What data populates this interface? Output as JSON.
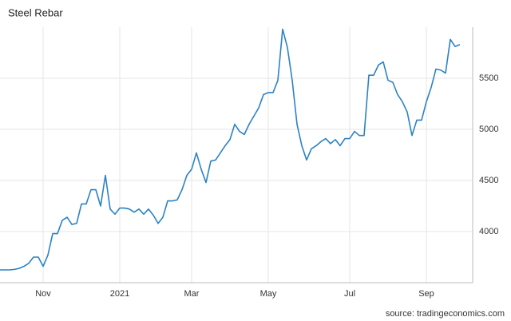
{
  "chart_data": {
    "type": "line",
    "title": "Steel Rebar",
    "source": "source: tradingeconomics.com",
    "categories": [
      null,
      null,
      null,
      null,
      null,
      null,
      null,
      null,
      null,
      "Nov",
      null,
      null,
      null,
      null,
      null,
      null,
      null,
      null,
      null,
      null,
      null,
      null,
      null,
      null,
      null,
      "2021",
      null,
      null,
      null,
      null,
      null,
      null,
      null,
      null,
      null,
      null,
      null,
      null,
      null,
      null,
      "Mar",
      null,
      null,
      null,
      null,
      null,
      null,
      null,
      null,
      null,
      null,
      null,
      null,
      null,
      null,
      null,
      "May",
      null,
      null,
      null,
      null,
      null,
      null,
      null,
      null,
      null,
      null,
      null,
      null,
      null,
      null,
      null,
      null,
      "Jul",
      null,
      null,
      null,
      null,
      null,
      null,
      null,
      null,
      null,
      null,
      null,
      null,
      null,
      null,
      null,
      "Sep",
      null,
      null,
      null,
      null,
      null,
      null,
      null
    ],
    "series": [
      {
        "name": "Steel Rebar",
        "color": "#2b82c4",
        "values": [
          3625,
          3625,
          3625,
          3630,
          3640,
          3660,
          3690,
          3750,
          3750,
          3660,
          3770,
          3980,
          3980,
          4110,
          4140,
          4070,
          4080,
          4270,
          4270,
          4410,
          4410,
          4250,
          4550,
          4220,
          4170,
          4230,
          4230,
          4220,
          4190,
          4220,
          4170,
          4220,
          4160,
          4080,
          4140,
          4300,
          4300,
          4310,
          4410,
          4550,
          4610,
          4770,
          4610,
          4480,
          4690,
          4700,
          4770,
          4840,
          4900,
          5050,
          4980,
          4950,
          5050,
          5130,
          5210,
          5340,
          5360,
          5360,
          5480,
          5980,
          5800,
          5480,
          5050,
          4840,
          4700,
          4810,
          4840,
          4880,
          4910,
          4860,
          4900,
          4840,
          4910,
          4910,
          4980,
          4940,
          4940,
          5530,
          5530,
          5630,
          5660,
          5480,
          5460,
          5340,
          5270,
          5170,
          4940,
          5090,
          5090,
          5270,
          5410,
          5590,
          5580,
          5550,
          5880,
          5810,
          5830
        ]
      }
    ],
    "ylim": [
      3500,
      6000
    ],
    "yticks": [
      4000,
      4500,
      5000,
      5500
    ],
    "grid": true
  }
}
